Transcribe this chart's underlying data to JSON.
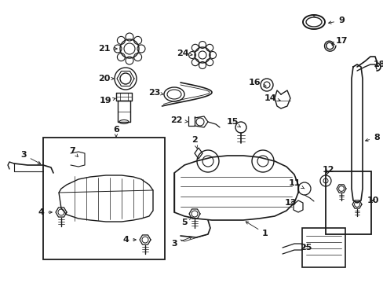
{
  "bg_color": "#ffffff",
  "line_color": "#1a1a1a",
  "fig_width": 4.89,
  "fig_height": 3.6,
  "dpi": 100,
  "label_fs": 8,
  "arrow_lw": 0.6,
  "component_lw": 0.9
}
